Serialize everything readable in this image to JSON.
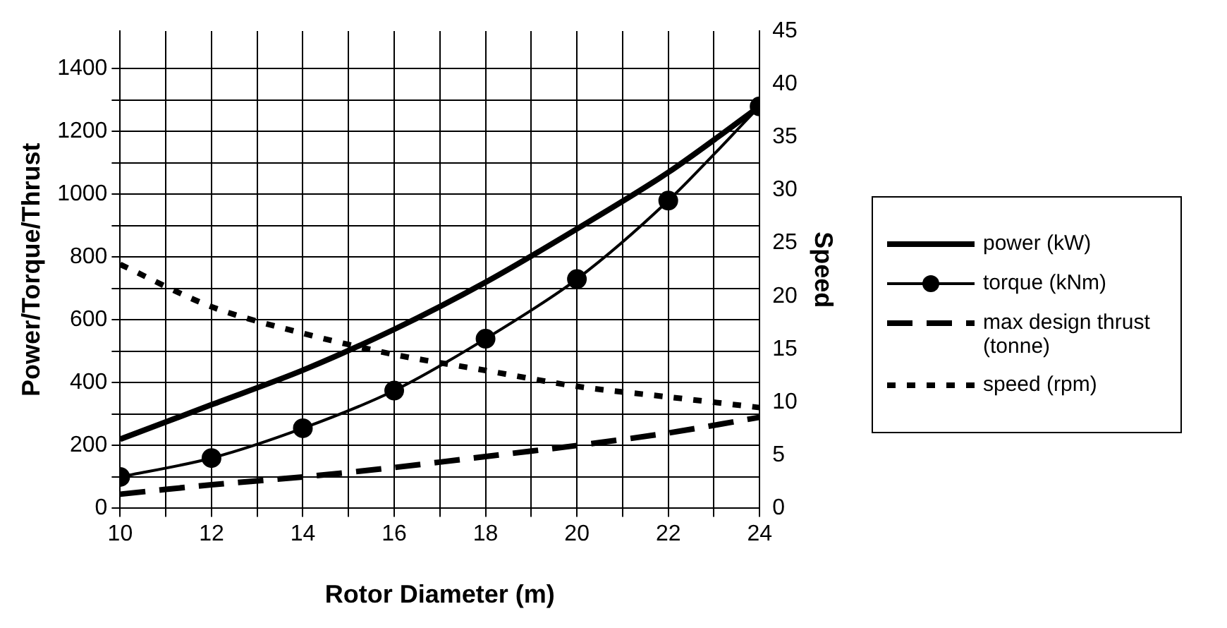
{
  "chart_data": {
    "type": "line",
    "xlabel": "Rotor Diameter (m)",
    "ylabel": "Power/Torque/Thrust",
    "y2label": "Speed",
    "x": [
      10,
      12,
      14,
      16,
      18,
      20,
      22,
      24
    ],
    "series": [
      {
        "name": "power (kW)",
        "color": "#000000",
        "values": [
          220,
          330,
          440,
          570,
          720,
          890,
          1070,
          1280
        ],
        "marker": "none",
        "line_style": "solid"
      },
      {
        "name": "torque (kNm)",
        "color": "#000000",
        "values": [
          100,
          160,
          255,
          375,
          540,
          730,
          980,
          1280
        ],
        "marker": "circle",
        "line_style": "solid"
      },
      {
        "name": "max design thrust (tonne)",
        "color": "#000000",
        "values": [
          45,
          75,
          100,
          130,
          165,
          200,
          240,
          290
        ],
        "marker": "none",
        "line_style": "dashed"
      },
      {
        "name": "speed (rpm)",
        "color": "#000000",
        "values": [
          23,
          19,
          16.5,
          14.5,
          13,
          11.5,
          10.5,
          9.5
        ],
        "marker": "none",
        "line_style": "dotted",
        "axis": "y2"
      }
    ],
    "xlim": [
      10,
      24
    ],
    "xticks": [
      10,
      {
        "value": 11,
        "label": null
      },
      12,
      {
        "value": 13,
        "label": null
      },
      14,
      {
        "value": 15,
        "label": null
      },
      16,
      {
        "value": 17,
        "label": null
      },
      18,
      {
        "value": 19,
        "label": null
      },
      20,
      {
        "value": 21,
        "label": null
      },
      22,
      {
        "value": 23,
        "label": null
      },
      24
    ],
    "ylim": [
      0,
      1520
    ],
    "yticks": [
      0,
      {
        "value": 100,
        "label": null
      },
      200,
      {
        "value": 300,
        "label": null
      },
      400,
      {
        "value": 500,
        "label": null
      },
      600,
      {
        "value": 700,
        "label": null
      },
      800,
      {
        "value": 900,
        "label": null
      },
      1000,
      {
        "value": 1100,
        "label": null
      },
      1200,
      {
        "value": 1300,
        "label": null
      },
      1400
    ],
    "y2lim": [
      0,
      45
    ],
    "y2ticks": [
      0,
      5,
      10,
      15,
      20,
      25,
      30,
      35,
      40,
      45
    ],
    "grid": true,
    "legend": "right"
  }
}
